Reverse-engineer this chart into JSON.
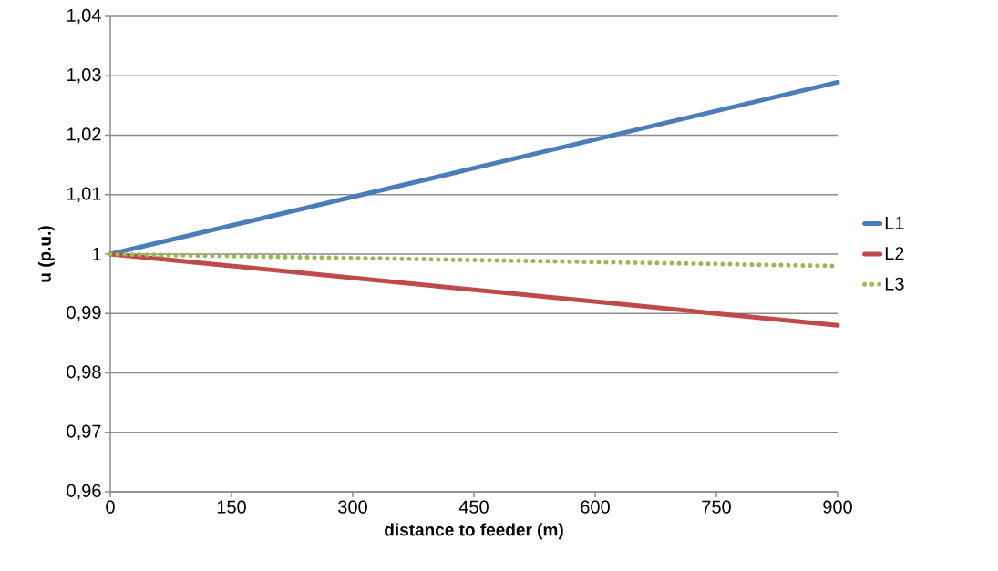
{
  "chart_data": {
    "type": "line",
    "xlabel": "distance to feeder (m)",
    "ylabel": "u (p.u.)",
    "xlim": [
      0,
      900
    ],
    "xticks": [
      0,
      150,
      300,
      450,
      600,
      750,
      900
    ],
    "ylim": [
      0.96,
      1.04
    ],
    "yticks": [
      {
        "value": 0.96,
        "label": "0,96"
      },
      {
        "value": 0.97,
        "label": "0,97"
      },
      {
        "value": 0.98,
        "label": "0,98"
      },
      {
        "value": 0.99,
        "label": "0,99"
      },
      {
        "value": 1,
        "label": "1"
      },
      {
        "value": 1.01,
        "label": "1,01"
      },
      {
        "value": 1.02,
        "label": "1,02"
      },
      {
        "value": 1.03,
        "label": "1,03"
      },
      {
        "value": 1.04,
        "label": "1,04"
      }
    ],
    "grid": "y",
    "legend": "right",
    "x": [
      0,
      900
    ],
    "series": [
      {
        "name": "L1",
        "color": "#4a7ebb",
        "values": [
          1,
          1.0289
        ],
        "line_style": "solid"
      },
      {
        "name": "L2",
        "color": "#be4b48",
        "values": [
          1,
          0.988
        ],
        "line_style": "solid"
      },
      {
        "name": "L3",
        "color": "#98b954",
        "values": [
          1,
          0.998
        ],
        "line_style": "dotted"
      }
    ]
  }
}
